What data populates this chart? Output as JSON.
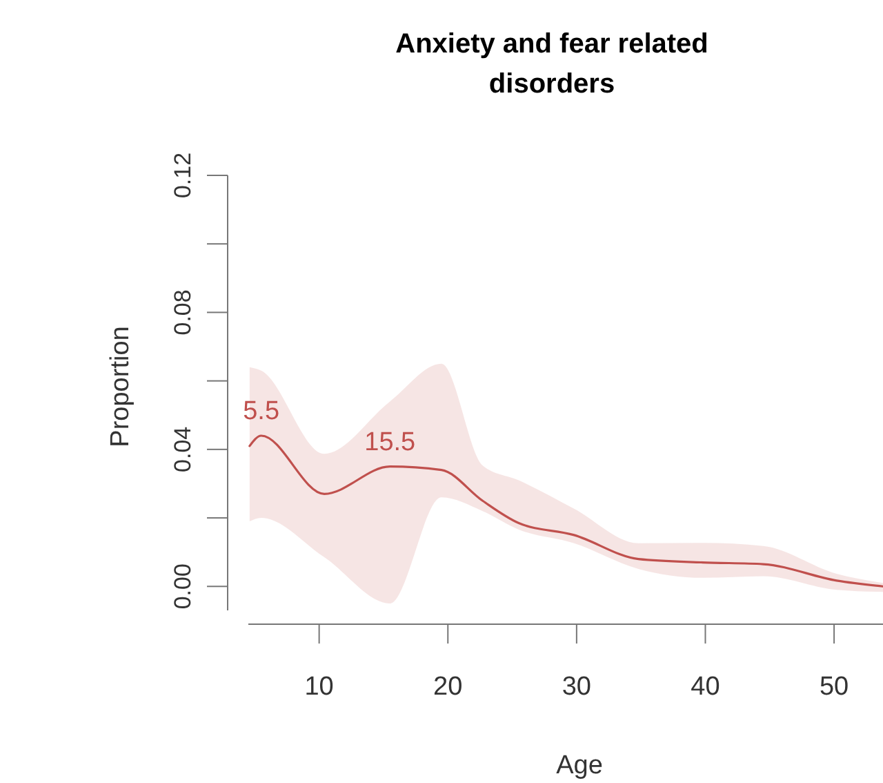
{
  "chart_data": {
    "type": "line",
    "title": "Anxiety and fear related disorders",
    "xlabel": "Age",
    "ylabel": "Proportion",
    "x": [
      4.6,
      5.5,
      10.4,
      15.5,
      19.5,
      22.7,
      25.5,
      29.8,
      34.8,
      39.8,
      44.5,
      50.2,
      53.8
    ],
    "series": [
      {
        "color": "#c0504d",
        "values": [
          0.041,
          0.044,
          0.027,
          0.035,
          0.034,
          0.025,
          0.0185,
          0.015,
          0.008,
          0.007,
          0.0065,
          0.0017,
          0
        ],
        "lower": [
          0.019,
          0.02,
          0.0085,
          -0.005,
          0.026,
          0.022,
          0.0166,
          0.0126,
          0.0051,
          0.0025,
          0.003,
          -0.001,
          -0.0016
        ],
        "upper": [
          0.064,
          0.063,
          0.0387,
          0.054,
          0.065,
          0.0353,
          0.031,
          0.0227,
          0.0126,
          0.0127,
          0.0118,
          0.0037,
          0.001
        ]
      }
    ],
    "annotations": [
      {
        "text": "5.5",
        "x": 5.5,
        "y": 0.044
      },
      {
        "text": "15.5",
        "x": 15.5,
        "y": 0.035
      }
    ],
    "xlim": [
      4.5,
      53.8
    ],
    "xticks": [
      10,
      20,
      30,
      40,
      50
    ],
    "ylim": [
      -0.007,
      0.12
    ],
    "yticks": [
      {
        "value": 0,
        "label": "0.00"
      },
      {
        "value": 0.02,
        "label": null
      },
      {
        "value": 0.04,
        "label": "0.04"
      },
      {
        "value": 0.06,
        "label": null
      },
      {
        "value": 0.08,
        "label": "0.08"
      },
      {
        "value": 0.1,
        "label": null
      },
      {
        "value": 0.12,
        "label": "0.12"
      }
    ],
    "grid": false
  }
}
